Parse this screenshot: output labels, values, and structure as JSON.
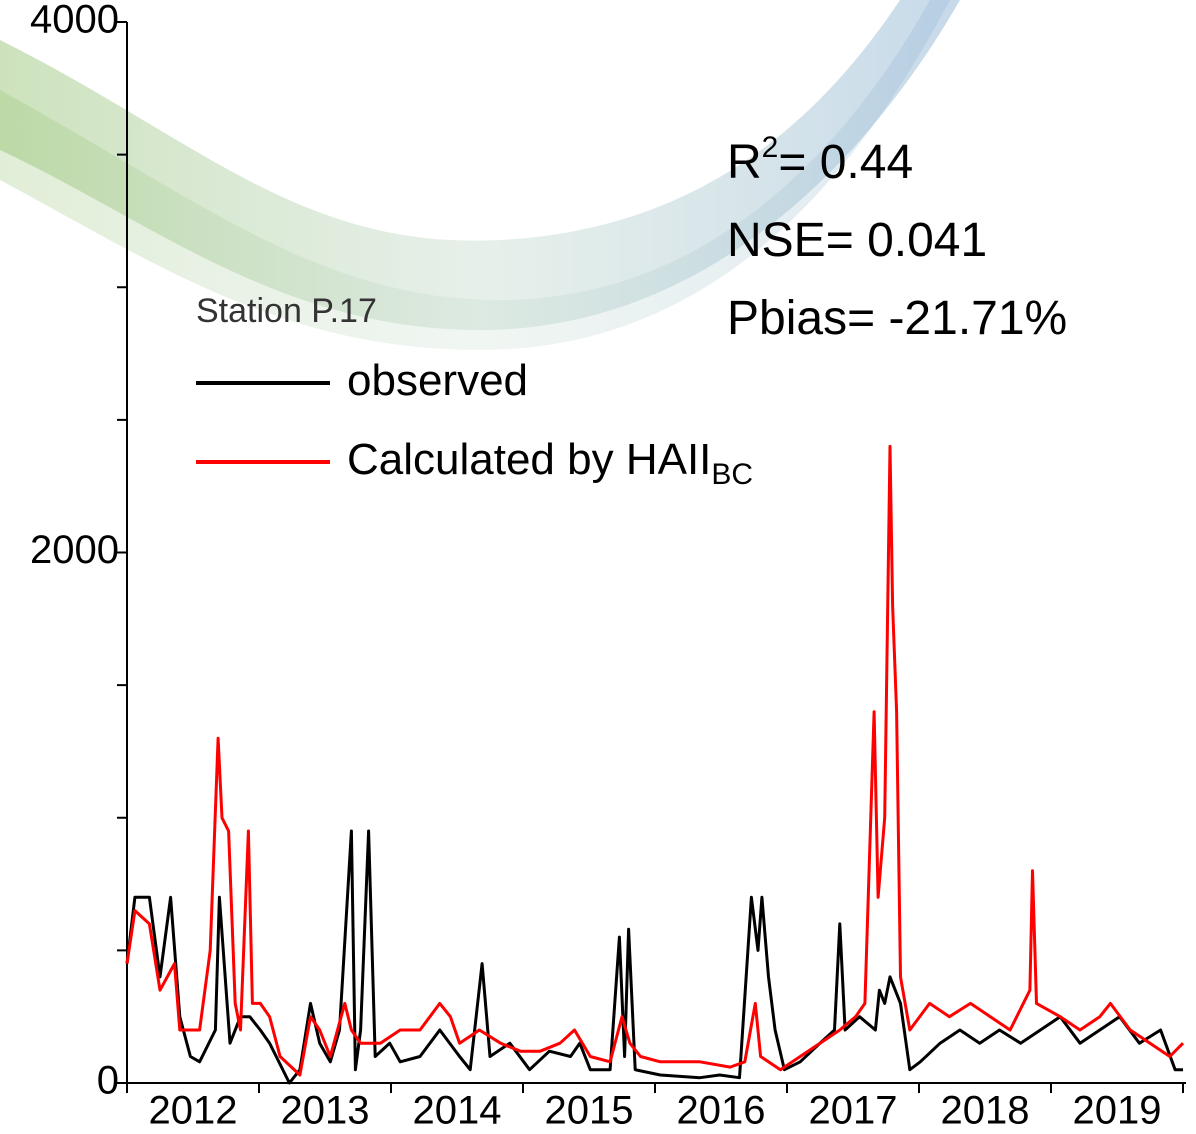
{
  "chart_data": {
    "type": "line",
    "legend_title": "Station P.17",
    "stats": [
      [
        "R",
        "2",
        "= 0.44"
      ],
      [
        "NSE= 0.041"
      ],
      [
        "Pbias= -21.71%"
      ]
    ],
    "xlim": [
      2012,
      2020
    ],
    "ylim": [
      0,
      4000
    ],
    "xticks": [
      {
        "value": 2012.5,
        "label": "2012"
      },
      {
        "value": 2013.5,
        "label": "2013"
      },
      {
        "value": 2014.5,
        "label": "2014"
      },
      {
        "value": 2015.5,
        "label": "2015"
      },
      {
        "value": 2016.5,
        "label": "2016"
      },
      {
        "value": 2017.5,
        "label": "2017"
      },
      {
        "value": 2018.5,
        "label": "2018"
      },
      {
        "value": 2019.5,
        "label": "2019"
      }
    ],
    "xminor": [
      2012,
      2013,
      2014,
      2015,
      2016,
      2017,
      2018,
      2019,
      2020
    ],
    "yticks": [
      0,
      2000,
      4000
    ],
    "yminor": [
      500,
      1000,
      1500,
      2500,
      3000,
      3500
    ],
    "series": [
      {
        "name": "observed",
        "color": "#000000",
        "x": [
          2012.0,
          2012.06,
          2012.17,
          2012.25,
          2012.33,
          2012.4,
          2012.48,
          2012.55,
          2012.67,
          2012.7,
          2012.78,
          2012.86,
          2012.93,
          2013.01,
          2013.08,
          2013.23,
          2013.31,
          2013.39,
          2013.46,
          2013.54,
          2013.61,
          2013.7,
          2013.73,
          2013.77,
          2013.83,
          2013.88,
          2013.99,
          2014.07,
          2014.22,
          2014.37,
          2014.52,
          2014.6,
          2014.69,
          2014.75,
          2014.9,
          2015.05,
          2015.2,
          2015.36,
          2015.43,
          2015.51,
          2015.66,
          2015.73,
          2015.77,
          2015.8,
          2015.85,
          2016.04,
          2016.34,
          2016.49,
          2016.64,
          2016.73,
          2016.78,
          2016.81,
          2016.86,
          2016.91,
          2016.98,
          2017.1,
          2017.25,
          2017.36,
          2017.4,
          2017.44,
          2017.55,
          2017.67,
          2017.7,
          2017.74,
          2017.78,
          2017.86,
          2017.93,
          2018.01,
          2018.16,
          2018.31,
          2018.46,
          2018.61,
          2018.77,
          2018.92,
          2019.07,
          2019.22,
          2019.37,
          2019.52,
          2019.67,
          2019.83,
          2019.94,
          2020.0
        ],
        "values": [
          450,
          700,
          700,
          400,
          700,
          250,
          100,
          80,
          200,
          700,
          150,
          250,
          250,
          200,
          150,
          0,
          50,
          300,
          150,
          80,
          200,
          950,
          50,
          200,
          950,
          100,
          150,
          80,
          100,
          200,
          100,
          50,
          450,
          100,
          150,
          50,
          120,
          100,
          150,
          50,
          50,
          550,
          100,
          580,
          50,
          30,
          20,
          30,
          20,
          700,
          500,
          700,
          400,
          200,
          50,
          80,
          150,
          200,
          600,
          200,
          250,
          200,
          350,
          300,
          400,
          300,
          50,
          80,
          150,
          200,
          150,
          200,
          150,
          200,
          250,
          150,
          200,
          250,
          150,
          200,
          50,
          50
        ]
      },
      {
        "name": "Calculated by HAII",
        "name_sub": "BC",
        "color": "#ff0000",
        "x": [
          2012.0,
          2012.06,
          2012.17,
          2012.25,
          2012.36,
          2012.4,
          2012.48,
          2012.55,
          2012.63,
          2012.69,
          2012.72,
          2012.77,
          2012.82,
          2012.86,
          2012.92,
          2012.95,
          2013.01,
          2013.08,
          2013.16,
          2013.31,
          2013.39,
          2013.46,
          2013.54,
          2013.65,
          2013.7,
          2013.77,
          2013.92,
          2014.07,
          2014.22,
          2014.37,
          2014.45,
          2014.52,
          2014.67,
          2014.83,
          2014.98,
          2015.13,
          2015.28,
          2015.39,
          2015.51,
          2015.66,
          2015.75,
          2015.81,
          2015.89,
          2016.04,
          2016.34,
          2016.57,
          2016.68,
          2016.76,
          2016.8,
          2016.95,
          2017.1,
          2017.25,
          2017.4,
          2017.52,
          2017.59,
          2017.66,
          2017.69,
          2017.74,
          2017.78,
          2017.8,
          2017.83,
          2017.86,
          2017.93,
          2018.08,
          2018.23,
          2018.39,
          2018.54,
          2018.69,
          2018.84,
          2018.86,
          2018.89,
          2019.07,
          2019.22,
          2019.37,
          2019.45,
          2019.6,
          2019.75,
          2019.9,
          2020.0
        ],
        "values": [
          450,
          650,
          600,
          350,
          450,
          200,
          200,
          200,
          500,
          1300,
          1000,
          950,
          300,
          200,
          950,
          300,
          300,
          250,
          100,
          30,
          250,
          200,
          100,
          300,
          200,
          150,
          150,
          200,
          200,
          300,
          250,
          150,
          200,
          150,
          120,
          120,
          150,
          200,
          100,
          80,
          250,
          150,
          100,
          80,
          80,
          60,
          80,
          300,
          100,
          50,
          100,
          150,
          200,
          250,
          300,
          1400,
          700,
          1000,
          2400,
          1800,
          1400,
          400,
          200,
          300,
          250,
          300,
          250,
          200,
          350,
          800,
          300,
          250,
          200,
          250,
          300,
          200,
          150,
          100,
          150
        ]
      }
    ]
  }
}
